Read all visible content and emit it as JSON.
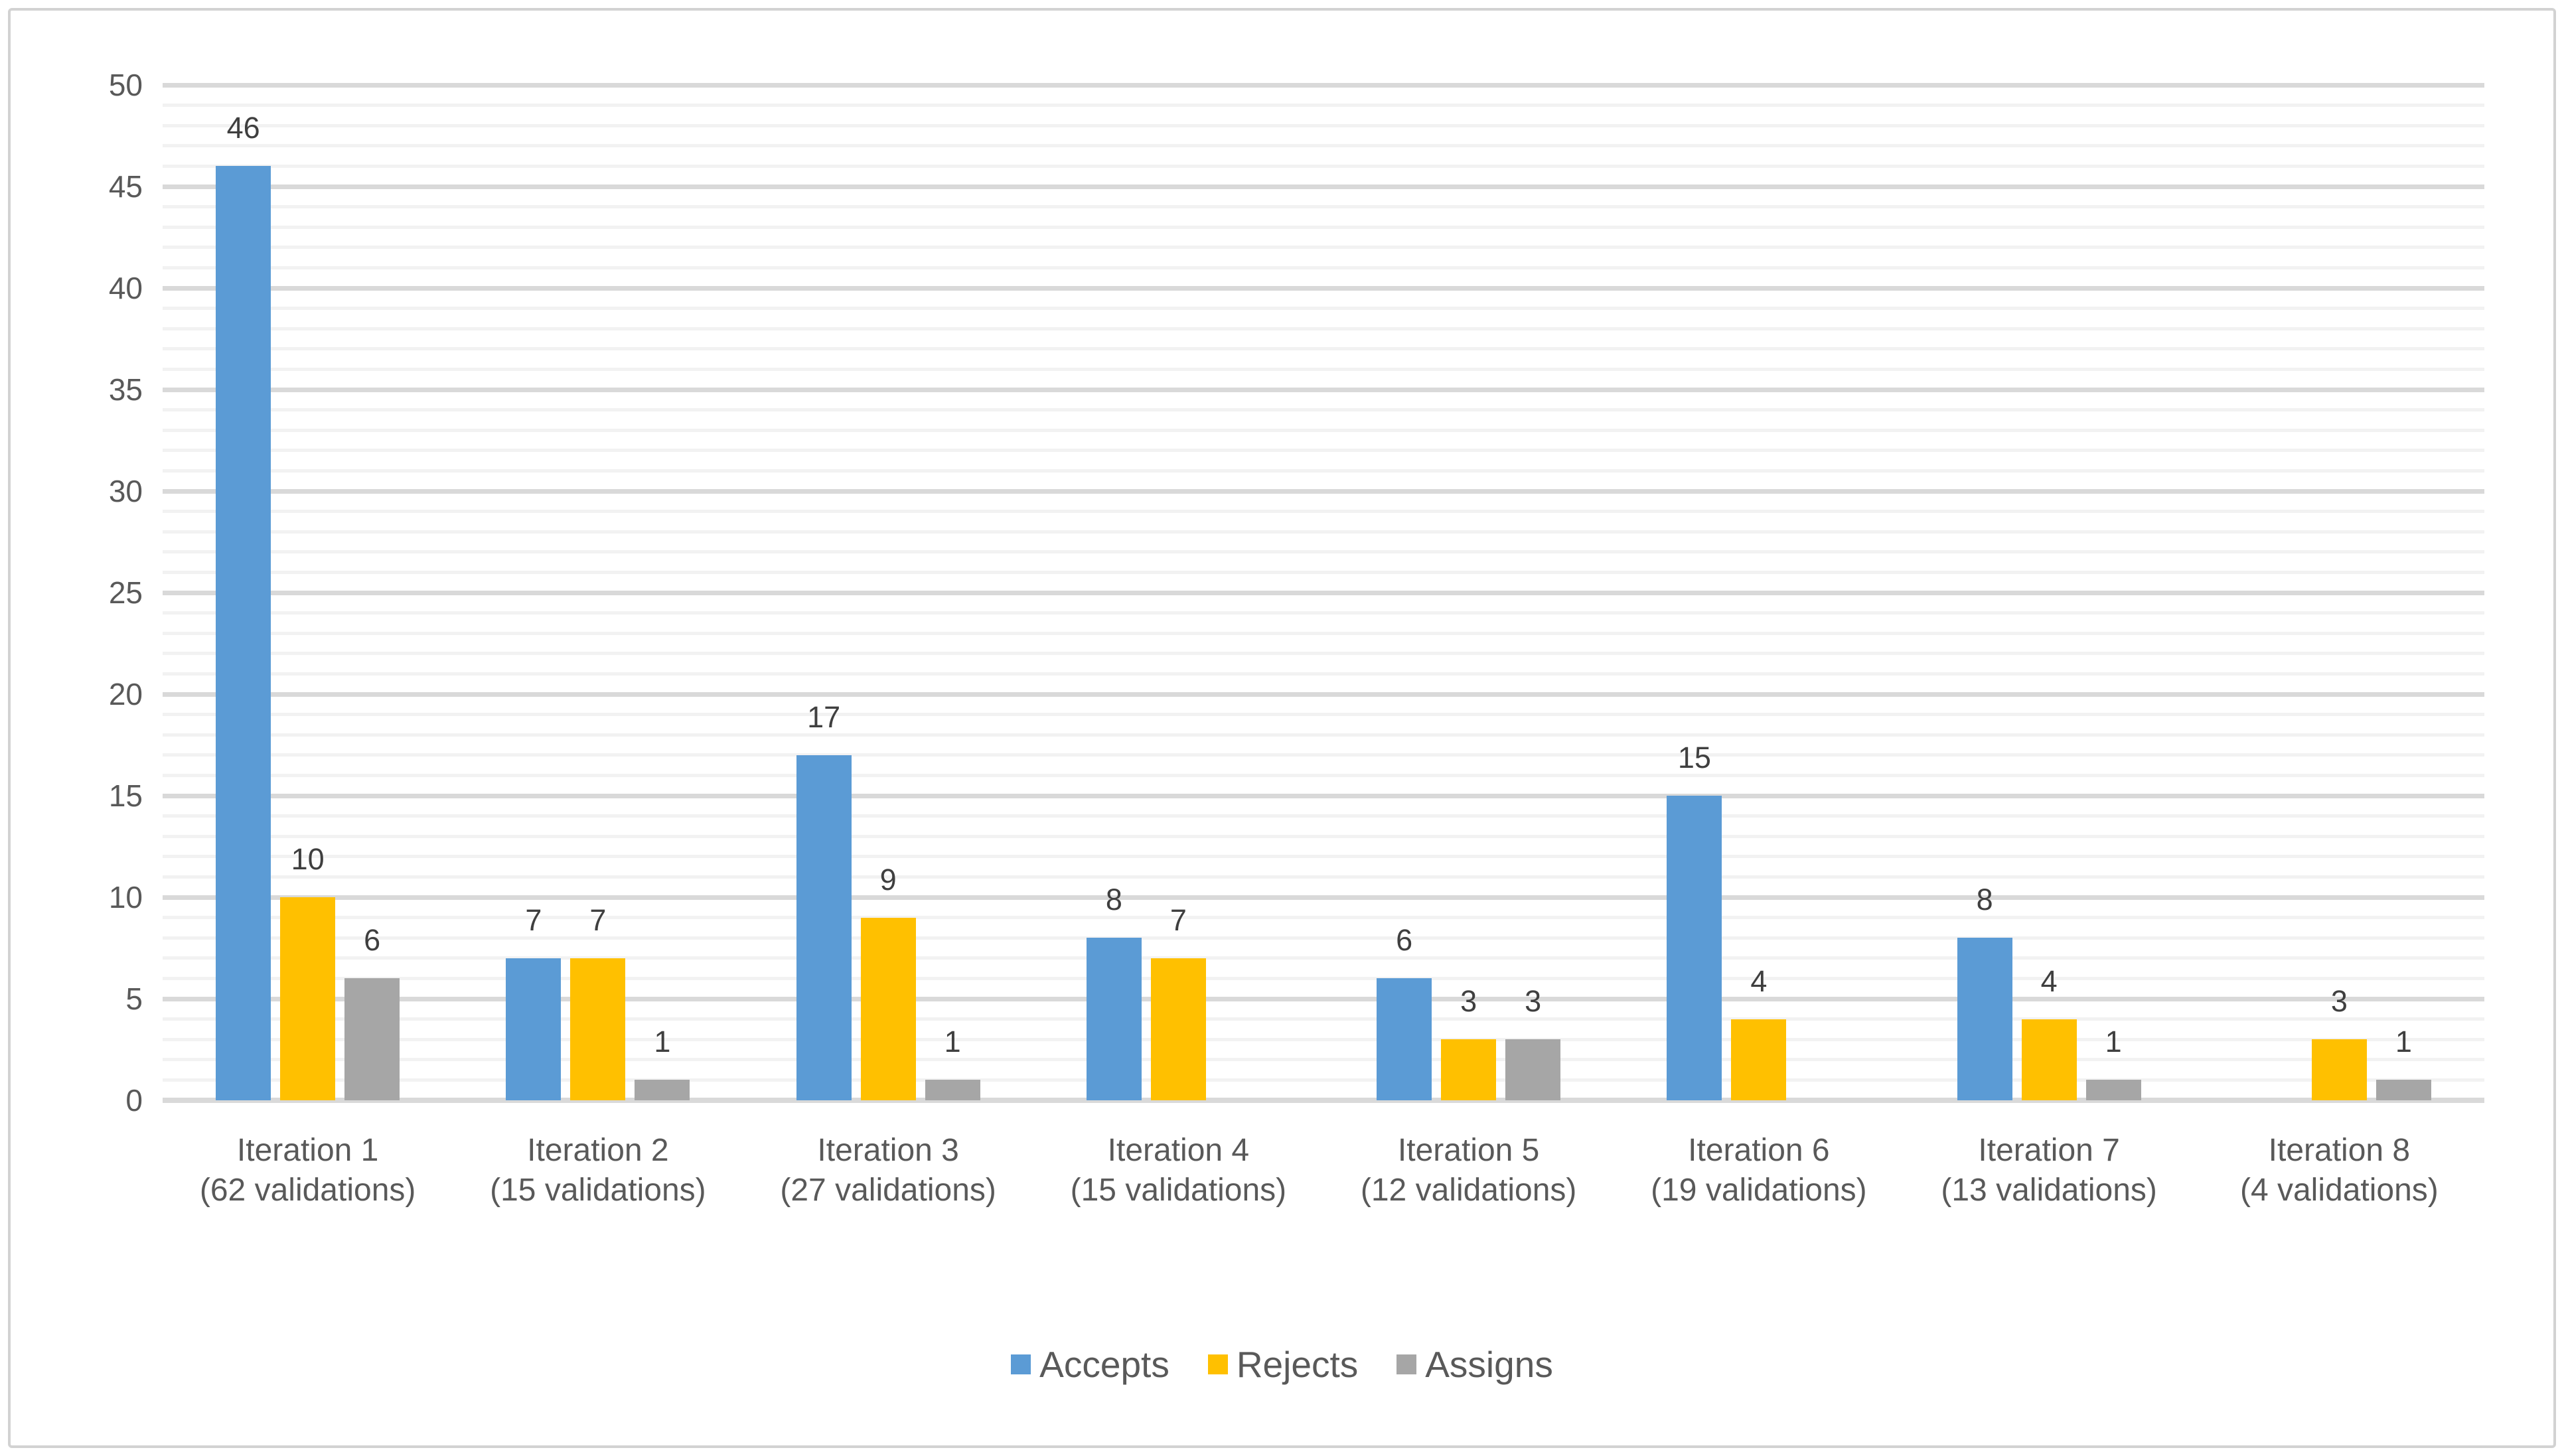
{
  "chart_data": {
    "type": "bar",
    "title": "",
    "categories": [
      {
        "name": "Iteration 1",
        "detail": "(62 validations)"
      },
      {
        "name": "Iteration 2",
        "detail": "(15 validations)"
      },
      {
        "name": "Iteration 3",
        "detail": "(27 validations)"
      },
      {
        "name": "Iteration 4",
        "detail": "(15 validations)"
      },
      {
        "name": "Iteration 5",
        "detail": "(12 validations)"
      },
      {
        "name": "Iteration 6",
        "detail": "(19 validations)"
      },
      {
        "name": "Iteration 7",
        "detail": "(13 validations)"
      },
      {
        "name": "Iteration 8",
        "detail": "(4 validations)"
      }
    ],
    "series": [
      {
        "name": "Accepts",
        "color": "#5B9BD5",
        "values": [
          46,
          7,
          17,
          8,
          6,
          15,
          8,
          0
        ]
      },
      {
        "name": "Rejects",
        "color": "#FFC000",
        "values": [
          10,
          7,
          9,
          7,
          3,
          4,
          4,
          3
        ]
      },
      {
        "name": "Assigns",
        "color": "#A6A6A6",
        "values": [
          6,
          1,
          1,
          0,
          3,
          0,
          1,
          1
        ]
      }
    ],
    "xlabel": "",
    "ylabel": "",
    "ylim": [
      0,
      50
    ],
    "y_major_unit": 5,
    "y_minor_unit": 1,
    "y_tick_labels": [
      "0",
      "5",
      "10",
      "15",
      "20",
      "25",
      "30",
      "35",
      "40",
      "45",
      "50"
    ],
    "grid": {
      "major_color": "#D9D9D9",
      "minor_color": "#F2F2F2",
      "shown": true
    },
    "data_labels_shown": true,
    "hide_zero_bars": true,
    "legend_position": "bottom",
    "colors": {
      "axis_text": "#595959",
      "data_label_text": "#3F3F3F",
      "chart_border": "#D2D2D2",
      "background": "#FFFFFF"
    }
  }
}
